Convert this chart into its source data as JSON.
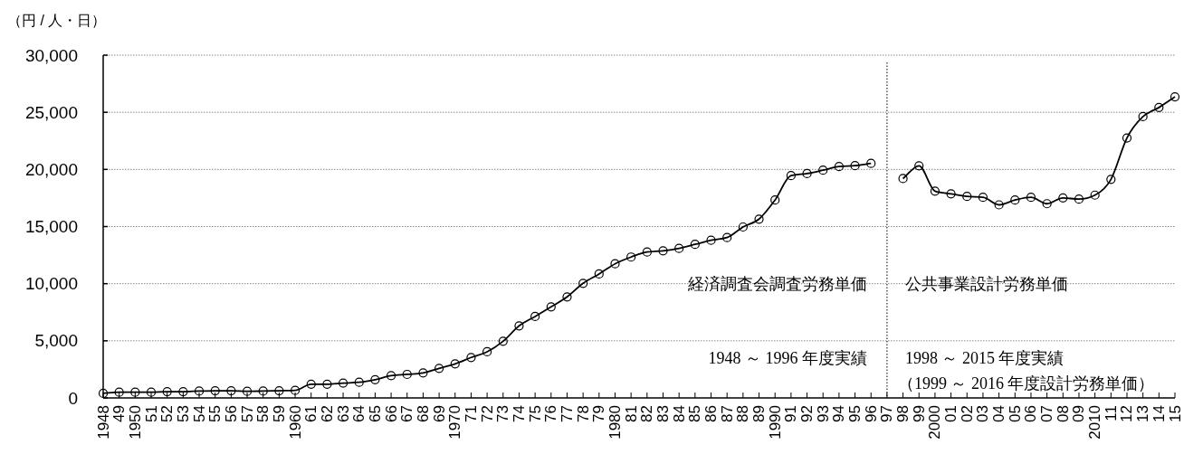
{
  "chart_data": {
    "type": "line",
    "ylabel": "（円 / 人・日）",
    "categories": [
      "1948",
      "49",
      "1950",
      "51",
      "52",
      "53",
      "54",
      "55",
      "56",
      "57",
      "58",
      "59",
      "1960",
      "61",
      "62",
      "63",
      "64",
      "65",
      "66",
      "67",
      "68",
      "69",
      "1970",
      "71",
      "72",
      "73",
      "74",
      "75",
      "76",
      "77",
      "78",
      "79",
      "1980",
      "81",
      "82",
      "83",
      "84",
      "85",
      "86",
      "87",
      "88",
      "89",
      "1990",
      "91",
      "92",
      "93",
      "94",
      "95",
      "96",
      "97",
      "98",
      "99",
      "2000",
      "01",
      "02",
      "03",
      "04",
      "05",
      "06",
      "07",
      "08",
      "09",
      "2010",
      "11",
      "12",
      "13",
      "14",
      "15"
    ],
    "series": [
      {
        "color": "#000000",
        "values": [
          400,
          500,
          500,
          500,
          550,
          550,
          600,
          630,
          630,
          580,
          600,
          630,
          660,
          1200,
          1200,
          1300,
          1370,
          1600,
          1950,
          2060,
          2190,
          2590,
          2980,
          3540,
          4040,
          4960,
          6310,
          7130,
          7970,
          8840,
          10030,
          10850,
          11740,
          12330,
          12770,
          12880,
          13090,
          13440,
          13800,
          14040,
          14960,
          15650,
          17320,
          19460,
          19640,
          19930,
          20250,
          20330,
          20530,
          null,
          19200,
          20320,
          18100,
          17860,
          17640,
          17560,
          16900,
          17320,
          17560,
          17000,
          17510,
          17400,
          17750,
          19130,
          22750,
          24620,
          25420,
          26350
        ]
      }
    ],
    "ylim": [
      0,
      30000
    ],
    "yticks": [
      {
        "value": 0,
        "label": "0"
      },
      {
        "value": 5000,
        "label": "5,000"
      },
      {
        "value": 10000,
        "label": "10,000"
      },
      {
        "value": 15000,
        "label": "15,000"
      },
      {
        "value": 20000,
        "label": "20,000"
      },
      {
        "value": 25000,
        "label": "25,000"
      },
      {
        "value": 30000,
        "label": "30,000"
      }
    ],
    "grid": "y",
    "marker": "circle",
    "line_style": "solid",
    "ref_lines": [
      {
        "axis": "x",
        "value": "97",
        "color": "#000000",
        "line_style": "dotted"
      }
    ],
    "annotations": [
      "経済調査会調査労務単価",
      "1948 ～ 1996 年度実績",
      "公共事業設計労務単価",
      "1998 ～ 2015 年度実績",
      "（1999 ～ 2016 年度設計労務単価）"
    ]
  }
}
